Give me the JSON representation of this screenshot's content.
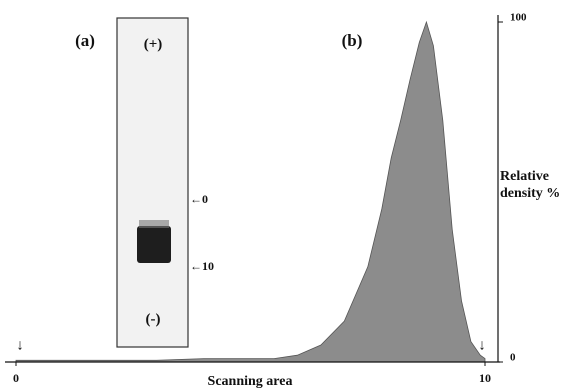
{
  "chart_data": {
    "type": "area",
    "panel_labels": [
      "(a)",
      "(b)"
    ],
    "gel_labels": {
      "anode": "(+)",
      "cathode": "(-)",
      "marker_start": "←0",
      "marker_end": "←10"
    },
    "scan_markers": [
      "↓",
      "↓"
    ],
    "xlabel": "Scanning area",
    "ylabel": "Relative density %",
    "x": [
      0,
      1,
      2,
      3,
      4,
      5,
      5.5,
      6,
      6.5,
      7,
      7.5,
      7.8,
      8,
      8.2,
      8.4,
      8.6,
      8.75,
      8.9,
      9.1,
      9.3,
      9.5,
      9.7,
      9.9,
      10
    ],
    "values": [
      0.5,
      0.5,
      0.5,
      0.5,
      1,
      1,
      1,
      2,
      5,
      12,
      28,
      45,
      60,
      71,
      83,
      94,
      100,
      93,
      71,
      39,
      18,
      6,
      2,
      1
    ],
    "color": "#8c8c8c",
    "xlim": [
      0,
      10
    ],
    "xticks": [
      0,
      10
    ],
    "ylim": [
      0,
      100
    ],
    "yticks": [
      0,
      100
    ]
  }
}
